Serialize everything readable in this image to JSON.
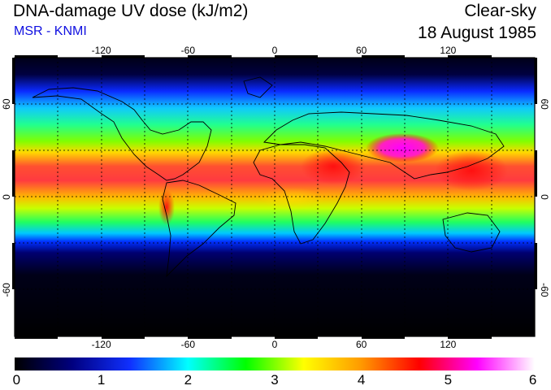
{
  "header": {
    "title": "DNA-damage UV dose (kJ/m2)",
    "credit": "MSR - KNMI",
    "sky_condition": "Clear-sky",
    "date": "18 August 1985"
  },
  "map": {
    "lon_range": [
      -180,
      180
    ],
    "lat_range": [
      -90,
      90
    ],
    "lon_ticks": [
      {
        "value": -120,
        "label": "-120"
      },
      {
        "value": -60,
        "label": "-60"
      },
      {
        "value": 0,
        "label": "0"
      },
      {
        "value": 60,
        "label": "60"
      },
      {
        "value": 120,
        "label": "120"
      }
    ],
    "lat_ticks": [
      {
        "value": 60,
        "label": "60"
      },
      {
        "value": 0,
        "label": "0"
      },
      {
        "value": -60,
        "label": "-60"
      }
    ],
    "grid": "dotted, every 30 degrees"
  },
  "colorbar": {
    "range": [
      0,
      6
    ],
    "ticks": [
      "0",
      "1",
      "2",
      "3",
      "4",
      "5",
      "6"
    ],
    "colors": [
      "#000000",
      "#000080",
      "#1030ff",
      "#00ffff",
      "#00ff00",
      "#ffff00",
      "#ff9900",
      "#ff0000",
      "#ff00ff",
      "#ffffff"
    ]
  },
  "colors": {
    "credit_text": "#1010e0"
  }
}
